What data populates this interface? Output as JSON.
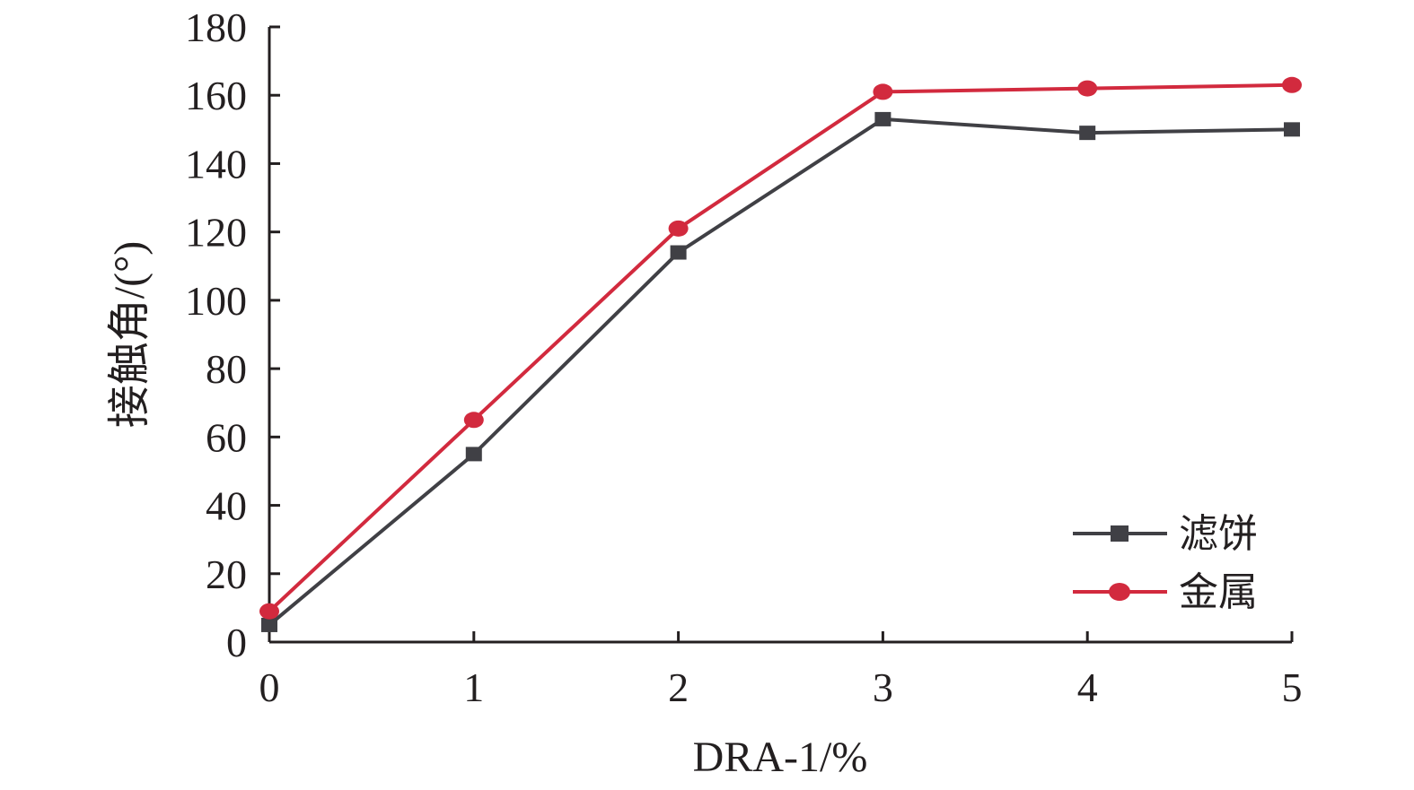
{
  "chart_data": {
    "type": "line",
    "title": "",
    "xlabel": "DRA-1/%",
    "ylabel": "接触角/(°)",
    "x": [
      0,
      1,
      2,
      3,
      4,
      5
    ],
    "xlim": [
      0,
      5
    ],
    "ylim": [
      0,
      180
    ],
    "xticks": [
      "0",
      "1",
      "2",
      "3",
      "4",
      "5"
    ],
    "yticks": [
      "0",
      "20",
      "40",
      "60",
      "80",
      "100",
      "120",
      "140",
      "160",
      "180"
    ],
    "grid": false,
    "legend_position": "bottom-right",
    "series": [
      {
        "name": "滤饼",
        "color": "#404045",
        "marker": "square",
        "values": [
          5,
          55,
          114,
          153,
          149,
          150
        ]
      },
      {
        "name": "金属",
        "color": "#d22a3e",
        "marker": "circle",
        "values": [
          9,
          65,
          121,
          161,
          162,
          163
        ]
      }
    ]
  }
}
